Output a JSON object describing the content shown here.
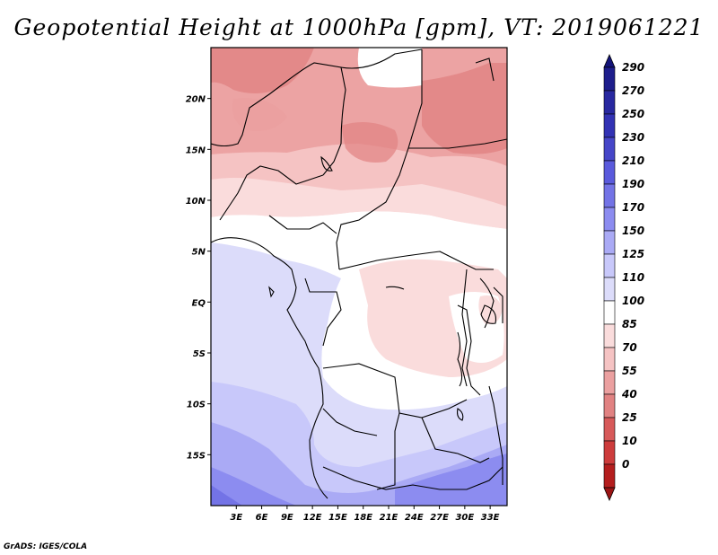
{
  "title": "Geopotential Height at 1000hPa [gpm], VT: 2019061221",
  "credit": "GrADS: IGES/COLA",
  "x_axis": {
    "ticks": [
      {
        "value": 3,
        "label": "3E"
      },
      {
        "value": 6,
        "label": "6E"
      },
      {
        "value": 9,
        "label": "9E"
      },
      {
        "value": 12,
        "label": "12E"
      },
      {
        "value": 15,
        "label": "15E"
      },
      {
        "value": 18,
        "label": "18E"
      },
      {
        "value": 21,
        "label": "21E"
      },
      {
        "value": 24,
        "label": "24E"
      },
      {
        "value": 27,
        "label": "27E"
      },
      {
        "value": 30,
        "label": "30E"
      },
      {
        "value": 33,
        "label": "33E"
      }
    ],
    "range": [
      0,
      35
    ]
  },
  "y_axis": {
    "ticks": [
      {
        "value": 20,
        "label": "20N"
      },
      {
        "value": 15,
        "label": "15N"
      },
      {
        "value": 10,
        "label": "10N"
      },
      {
        "value": 5,
        "label": "5N"
      },
      {
        "value": 0,
        "label": "EQ"
      },
      {
        "value": -5,
        "label": "5S"
      },
      {
        "value": -10,
        "label": "10S"
      },
      {
        "value": -15,
        "label": "15S"
      }
    ],
    "range": [
      -20,
      25
    ]
  },
  "colorbar": {
    "levels": [
      {
        "label": "290",
        "color": "#1e1e8c"
      },
      {
        "label": "270",
        "color": "#2828a0"
      },
      {
        "label": "250",
        "color": "#3232b4"
      },
      {
        "label": "230",
        "color": "#4646c8"
      },
      {
        "label": "210",
        "color": "#5a5adc"
      },
      {
        "label": "190",
        "color": "#7373e6"
      },
      {
        "label": "170",
        "color": "#8c8cf0"
      },
      {
        "label": "150",
        "color": "#aaaaf5"
      },
      {
        "label": "125",
        "color": "#c8c8fa"
      },
      {
        "label": "110",
        "color": "#dcdcfa"
      },
      {
        "label": "100",
        "color": "#ffffff"
      },
      {
        "label": "85",
        "color": "#fadcdc"
      },
      {
        "label": "70",
        "color": "#f5c3c3"
      },
      {
        "label": "55",
        "color": "#eba0a0"
      },
      {
        "label": "40",
        "color": "#e18282"
      },
      {
        "label": "25",
        "color": "#d75a5a"
      },
      {
        "label": "10",
        "color": "#cd3c3c"
      },
      {
        "label": "0",
        "color": "#b41e1e"
      }
    ],
    "top_cap_color": "#14147a",
    "bottom_cap_color": "#9b1414"
  }
}
